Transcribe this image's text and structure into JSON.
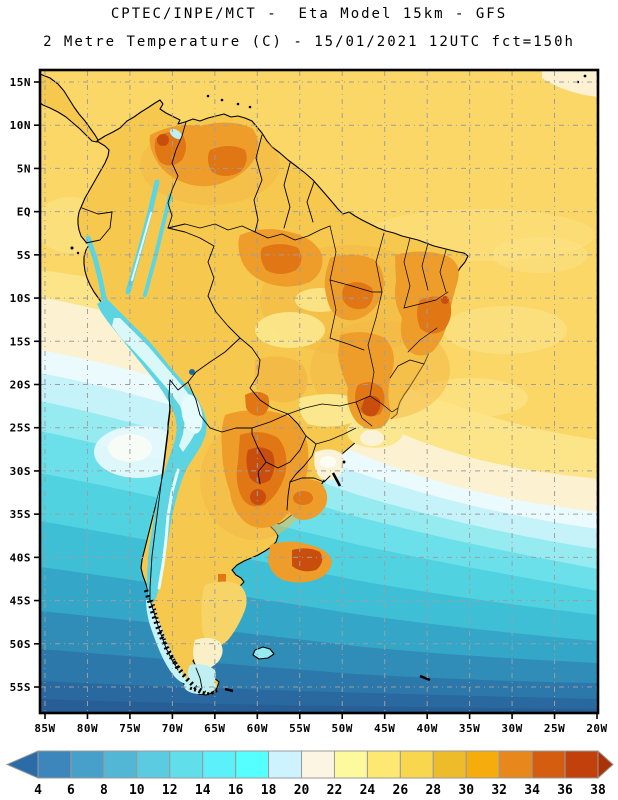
{
  "header": {
    "title_line1": "CPTEC/INPE/MCT -  Eta Model 15km - GFS",
    "title_line2": "2 Metre Temperature (C) - 15/01/2021 12UTC fct=150h"
  },
  "axes": {
    "lat_labels": [
      "15N",
      "10N",
      "5N",
      "EQ",
      "5S",
      "10S",
      "15S",
      "20S",
      "25S",
      "30S",
      "35S",
      "40S",
      "45S",
      "50S",
      "55S"
    ],
    "lon_labels": [
      "85W",
      "80W",
      "75W",
      "70W",
      "65W",
      "60W",
      "55W",
      "50W",
      "45W",
      "40W",
      "35W",
      "30W",
      "25W",
      "20W"
    ]
  },
  "colorbar": {
    "tick_labels": [
      "4",
      "6",
      "8",
      "10",
      "12",
      "14",
      "16",
      "18",
      "20",
      "22",
      "24",
      "26",
      "28",
      "30",
      "32",
      "34",
      "36",
      "38"
    ],
    "arrow_left_color": "#2B6CA8",
    "cell_colors": [
      "#3C86BB",
      "#47A0C9",
      "#52B7D4",
      "#5ACBE0",
      "#60DEEA",
      "#5BF0FA",
      "#55FFFF",
      "#CCF3FF",
      "#FDF5E3",
      "#FDFA9D",
      "#FDE971",
      "#F8D74F",
      "#EEBB2B",
      "#F6AC0D",
      "#E8871B",
      "#D55D0F",
      "#C2400B"
    ],
    "arrow_right_color": "#A93206"
  },
  "map": {
    "colors": {
      "ocean_yellow": "#FBD767",
      "ocean_pale_yellow": "#FCE488",
      "ocean_cream": "#FCF2D2",
      "ocean_ice": "#EBFAFD",
      "ocean_cyan_pale": "#C6F2FA",
      "ocean_cyan_light": "#96EBF1",
      "ocean_cyan": "#6CE0EA",
      "ocean_teal": "#50D2E0",
      "ocean_teal_deep": "#3EBFD6",
      "ocean_steel": "#34A6C8",
      "ocean_blue": "#2F8DB8",
      "ocean_blue_deep": "#2C78AA",
      "ocean_blue_dark": "#2A68A0",
      "ocean_abyss": "#285E96",
      "land_base": "#F6C94E",
      "land_warm": "#F3B843",
      "land_hot": "#EE9C2A",
      "land_hotter": "#E07614",
      "land_red": "#C94E0E",
      "land_pale": "#FBE88E",
      "land_cream": "#FAF3D8",
      "land_white": "#FDFDF4",
      "patagonia_gold": "#F6D468",
      "patagonia_cream": "#FAF0C8",
      "patagonia_tip": "#BFEFF0",
      "andes_cyan": "#5CD4E2",
      "andes_ice": "#E6FBFB",
      "lake": "#1A6A9A"
    }
  }
}
